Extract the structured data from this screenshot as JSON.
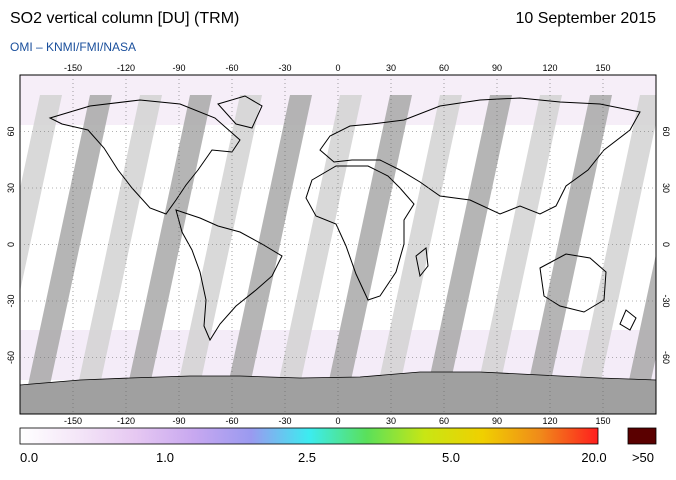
{
  "header": {
    "title": "SO2 vertical column [DU] (TRM)",
    "date": "10 September 2015",
    "credit": "OMI  –  KNMI/FMI/NASA"
  },
  "map": {
    "lon_ticks": [
      "-150",
      "-120",
      "-90",
      "-60",
      "-30",
      "0",
      "30",
      "60",
      "90",
      "120",
      "150"
    ],
    "lat_ticks": [
      "60",
      "30",
      "0",
      "-30",
      "-60"
    ],
    "colors": {
      "background": "#ffffff",
      "swath_gap_dark": "#a8a8a8",
      "swath_gap_light": "#d2d2d2",
      "no_data": "#a0a0a0",
      "coast": "#000000",
      "grid": "#666666"
    }
  },
  "colorbar": {
    "labels": [
      "0.0",
      "1.0",
      "2.5",
      "5.0",
      "20.0"
    ],
    "overflow_label": ">50",
    "overflow_color": "#5a0000",
    "stops": [
      "#ffffff",
      "#f4e6f8",
      "#e6c8f2",
      "#c8a8f0",
      "#9a9af0",
      "#3cecf0",
      "#5ae05a",
      "#c8e614",
      "#f0d000",
      "#f08a1a",
      "#ff1e1e"
    ]
  }
}
